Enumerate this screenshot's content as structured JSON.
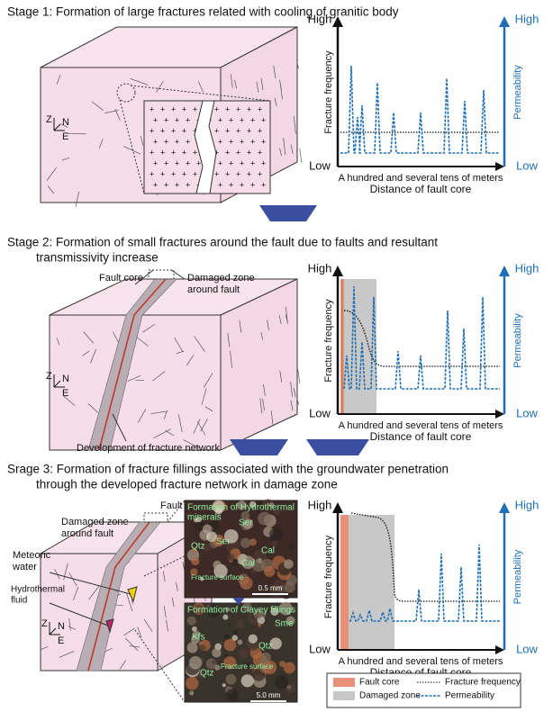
{
  "stages": [
    {
      "title": [
        "Stage 1: Formation of large fractures related with cooling of granitic body"
      ],
      "compass": {
        "z": "Z",
        "n": "N",
        "e": "E"
      },
      "plot": {
        "y_high": "High",
        "y_low": "Low",
        "y2_high": "High",
        "y2_low": "Low",
        "y_label": "Fracture frequency",
        "y2_label": "Permeability",
        "x_note": "A hundred and several tens of meters",
        "x_label": "Distance of fault core"
      }
    },
    {
      "title": [
        "Stage 2: Formation of small fractures around the fault due to faults and resultant",
        "transmissivity increase"
      ],
      "compass": {
        "z": "Z",
        "n": "N",
        "e": "E"
      },
      "fault_core": "Fault core",
      "damaged_zone": [
        "Damaged zone",
        "around fault"
      ],
      "network": "Development of fracture network",
      "plot": {
        "y_high": "High",
        "y_low": "Low",
        "y2_high": "High",
        "y2_low": "Low",
        "y_label": "Fracture frequency",
        "y2_label": "Permeability",
        "x_note": "A hundred and several tens of meters",
        "x_label": "Distance of fault core"
      }
    },
    {
      "title": [
        "Srage 3: Formation of fracture fillings associated with the groundwater penetration",
        "through the developed fracture network in damage zone"
      ],
      "compass": {
        "z": "Z",
        "n": "N",
        "e": "E"
      },
      "fault_core": "Fault core",
      "damaged_zone": [
        "Damaged zone",
        "around fault"
      ],
      "meteoric_water": [
        "Meteoric",
        "water"
      ],
      "hydrothermal_fluid": [
        "Hydrothermal",
        "fluid"
      ],
      "photos": [
        {
          "title": [
            "Formation of Hydrothermal",
            "minerals"
          ],
          "labels": [
            "Ser",
            "Ser",
            "Qtz",
            "Cal",
            "Cal",
            "Fracture surface"
          ],
          "scale": "0.5 mm"
        },
        {
          "title": [
            "Formation of Clayey fillings"
          ],
          "labels": [
            "Sme",
            "Kfs",
            "Qtz",
            "Qtz",
            "Fracture surface"
          ],
          "scale": "5.0 mm"
        }
      ],
      "plot": {
        "y_high": "High",
        "y_low": "Low",
        "y2_high": "High",
        "y2_low": "Low",
        "y_label": "Fracture frequency",
        "y2_label": "Permeability",
        "x_note": "A hundred and several tens of meters",
        "x_label": "Distance of fault core"
      },
      "legend": [
        "Fault core",
        "Damaged zone",
        "Fracture frequency",
        "Permeability"
      ]
    }
  ]
}
